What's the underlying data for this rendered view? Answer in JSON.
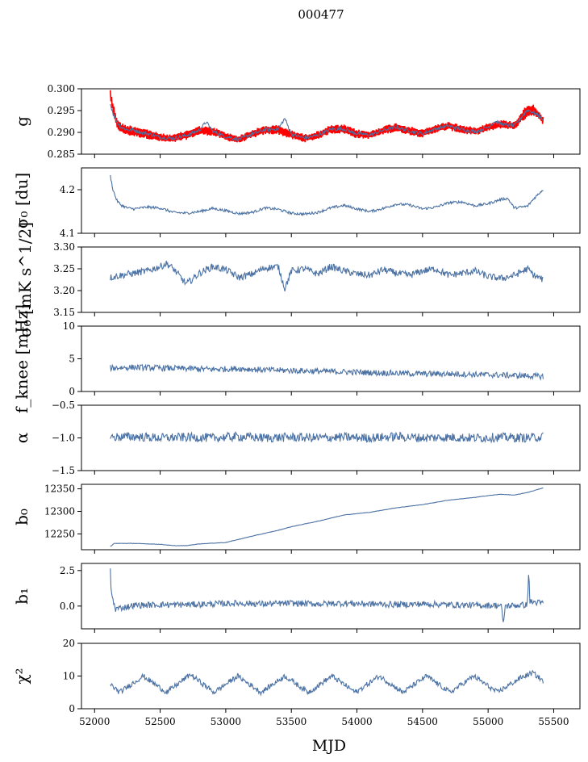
{
  "figure": {
    "title": "000477",
    "xlabel": "MJD"
  },
  "colors": {
    "series": "#4c72a4",
    "model": "#ff0000",
    "axis": "#000000"
  },
  "chart_data": [
    {
      "type": "line",
      "key": "g",
      "ylabel": "g",
      "xlim": [
        51900,
        55700
      ],
      "ylim": [
        0.285,
        0.3
      ],
      "xticks": [
        52000,
        52500,
        53000,
        53500,
        54000,
        54500,
        55000,
        55500
      ],
      "yticks": [
        0.285,
        0.29,
        0.295,
        0.3
      ],
      "ytick_labels": [
        "0.285",
        "0.290",
        "0.295",
        "0.300"
      ],
      "series": [
        {
          "name": "",
          "color": "#ff0000",
          "band": true,
          "x": [
            52120,
            52140,
            52170,
            52200,
            52250,
            52300,
            52400,
            52500,
            52600,
            52700,
            52800,
            52900,
            53000,
            53100,
            53200,
            53300,
            53400,
            53500,
            53600,
            53700,
            53800,
            53900,
            54000,
            54100,
            54200,
            54300,
            54400,
            54500,
            54600,
            54700,
            54800,
            54900,
            55000,
            55100,
            55200,
            55300,
            55350,
            55400,
            55420
          ],
          "upper": [
            0.3,
            0.297,
            0.2935,
            0.2922,
            0.2917,
            0.2916,
            0.2908,
            0.2898,
            0.2895,
            0.2905,
            0.2915,
            0.2913,
            0.29,
            0.2893,
            0.2906,
            0.2916,
            0.2917,
            0.2906,
            0.2896,
            0.2903,
            0.2917,
            0.2918,
            0.2907,
            0.2903,
            0.2915,
            0.2922,
            0.2914,
            0.2907,
            0.2918,
            0.2925,
            0.2917,
            0.2912,
            0.2922,
            0.2929,
            0.2925,
            0.2966,
            0.2965,
            0.2945,
            0.2935
          ],
          "lower": [
            0.298,
            0.2935,
            0.291,
            0.2898,
            0.2893,
            0.289,
            0.2885,
            0.2878,
            0.2876,
            0.2883,
            0.2894,
            0.2892,
            0.2881,
            0.2875,
            0.2886,
            0.2895,
            0.2895,
            0.2884,
            0.2877,
            0.2884,
            0.2897,
            0.2897,
            0.2886,
            0.2885,
            0.2895,
            0.2901,
            0.2894,
            0.2888,
            0.2899,
            0.2905,
            0.2897,
            0.2893,
            0.2902,
            0.2909,
            0.2906,
            0.2935,
            0.2938,
            0.2924,
            0.2918
          ]
        },
        {
          "name": "",
          "color": "#4c72a4",
          "x": [
            52120,
            52140,
            52170,
            52200,
            52250,
            52300,
            52400,
            52500,
            52600,
            52700,
            52800,
            52850,
            52900,
            53000,
            53100,
            53200,
            53300,
            53400,
            53450,
            53500,
            53600,
            53700,
            53800,
            53900,
            54000,
            54100,
            54200,
            54300,
            54400,
            54500,
            54600,
            54700,
            54800,
            54900,
            55000,
            55050,
            55100,
            55200,
            55300,
            55350,
            55400,
            55420
          ],
          "y": [
            0.2965,
            0.2945,
            0.2925,
            0.2912,
            0.2906,
            0.2905,
            0.2897,
            0.2889,
            0.2886,
            0.2893,
            0.2905,
            0.2924,
            0.2903,
            0.289,
            0.2884,
            0.2896,
            0.2906,
            0.2908,
            0.2932,
            0.2896,
            0.2887,
            0.2893,
            0.2907,
            0.2908,
            0.2897,
            0.2894,
            0.2905,
            0.2912,
            0.2904,
            0.2897,
            0.2908,
            0.2915,
            0.2907,
            0.2902,
            0.2912,
            0.2925,
            0.2919,
            0.2915,
            0.2952,
            0.2945,
            0.2935,
            0.2928
          ]
        }
      ]
    },
    {
      "type": "line",
      "key": "sigma0_du",
      "ylabel": "σ₀ [du]",
      "xlim": [
        51900,
        55700
      ],
      "ylim": [
        4.1,
        4.25
      ],
      "yticks": [
        4.1,
        4.2
      ],
      "ytick_labels": [
        "4.1",
        "4.2"
      ],
      "series": [
        {
          "name": "",
          "color": "#4c72a4",
          "x": [
            52120,
            52140,
            52170,
            52200,
            52250,
            52300,
            52400,
            52500,
            52600,
            52700,
            52800,
            52900,
            53000,
            53100,
            53200,
            53300,
            53400,
            53500,
            53600,
            53700,
            53800,
            53900,
            54000,
            54100,
            54200,
            54300,
            54400,
            54500,
            54600,
            54700,
            54800,
            54900,
            55000,
            55100,
            55150,
            55200,
            55300,
            55350,
            55400,
            55420
          ],
          "y": [
            4.232,
            4.2,
            4.175,
            4.165,
            4.158,
            4.156,
            4.16,
            4.158,
            4.148,
            4.146,
            4.15,
            4.157,
            4.152,
            4.145,
            4.148,
            4.158,
            4.155,
            4.146,
            4.144,
            4.148,
            4.158,
            4.164,
            4.156,
            4.15,
            4.157,
            4.167,
            4.165,
            4.156,
            4.16,
            4.17,
            4.172,
            4.163,
            4.168,
            4.178,
            4.18,
            4.158,
            4.162,
            4.18,
            4.195,
            4.2
          ]
        }
      ]
    },
    {
      "type": "line",
      "key": "sigma0_mk",
      "ylabel": "σ₀ [mK s^1/2]",
      "xlim": [
        51900,
        55700
      ],
      "ylim": [
        3.15,
        3.3
      ],
      "yticks": [
        3.15,
        3.2,
        3.25,
        3.3
      ],
      "ytick_labels": [
        "3.15",
        "3.20",
        "3.25",
        "3.30"
      ],
      "series": [
        {
          "name": "",
          "color": "#4c72a4",
          "x": [
            52120,
            52200,
            52300,
            52400,
            52500,
            52550,
            52600,
            52700,
            52800,
            52900,
            53000,
            53100,
            53200,
            53300,
            53400,
            53450,
            53500,
            53600,
            53700,
            53800,
            53900,
            54000,
            54100,
            54200,
            54300,
            54400,
            54500,
            54600,
            54700,
            54800,
            54900,
            55000,
            55100,
            55200,
            55300,
            55350,
            55420
          ],
          "y": [
            3.23,
            3.235,
            3.24,
            3.245,
            3.255,
            3.262,
            3.25,
            3.215,
            3.24,
            3.255,
            3.248,
            3.23,
            3.238,
            3.252,
            3.255,
            3.205,
            3.245,
            3.25,
            3.238,
            3.255,
            3.245,
            3.238,
            3.235,
            3.248,
            3.24,
            3.235,
            3.245,
            3.25,
            3.235,
            3.24,
            3.245,
            3.232,
            3.228,
            3.235,
            3.25,
            3.235,
            3.225
          ]
        }
      ]
    },
    {
      "type": "line",
      "key": "fknee",
      "ylabel": "f_knee [mHz]",
      "xlim": [
        51900,
        55700
      ],
      "ylim": [
        0,
        10
      ],
      "yticks": [
        0,
        5,
        10
      ],
      "ytick_labels": [
        "0",
        "5",
        "10"
      ],
      "series": [
        {
          "name": "",
          "color": "#4c72a4",
          "x": [
            52120,
            52300,
            52500,
            52700,
            52900,
            53100,
            53300,
            53500,
            53700,
            53900,
            54100,
            54300,
            54500,
            54700,
            54900,
            55100,
            55300,
            55420
          ],
          "y": [
            3.6,
            3.7,
            3.6,
            3.5,
            3.4,
            3.5,
            3.3,
            3.2,
            3.1,
            3.0,
            2.9,
            2.8,
            2.7,
            2.7,
            2.6,
            2.5,
            2.4,
            2.3
          ]
        }
      ]
    },
    {
      "type": "line",
      "key": "alpha",
      "ylabel": "α",
      "xlim": [
        51900,
        55700
      ],
      "ylim": [
        -1.5,
        -0.5
      ],
      "yticks": [
        -1.5,
        -1.0,
        -0.5
      ],
      "ytick_labels": [
        "−1.5",
        "−1.0",
        "−0.5"
      ],
      "series": [
        {
          "name": "",
          "color": "#4c72a4",
          "x": [
            52120,
            52300,
            52500,
            52700,
            52900,
            53100,
            53300,
            53500,
            53700,
            53900,
            54100,
            54300,
            54500,
            54700,
            54900,
            55100,
            55300,
            55420
          ],
          "y": [
            -0.99,
            -0.98,
            -1.0,
            -0.99,
            -1.0,
            -0.98,
            -1.0,
            -0.99,
            -1.0,
            -0.99,
            -1.0,
            -0.98,
            -1.0,
            -0.99,
            -1.0,
            -0.99,
            -1.0,
            -0.98
          ]
        }
      ]
    },
    {
      "type": "line",
      "key": "b0",
      "ylabel": "b₀",
      "xlim": [
        51900,
        55700
      ],
      "ylim": [
        12215,
        12360
      ],
      "yticks": [
        12250,
        12300,
        12350
      ],
      "ytick_labels": [
        "12250",
        "12300",
        "12350"
      ],
      "series": [
        {
          "name": "",
          "color": "#4c72a4",
          "x": [
            52120,
            52150,
            52300,
            52500,
            52600,
            52700,
            52800,
            53000,
            53200,
            53400,
            53500,
            53700,
            53900,
            54100,
            54300,
            54500,
            54700,
            54900,
            55000,
            55100,
            55200,
            55300,
            55420
          ],
          "y": [
            12222,
            12229,
            12229,
            12227,
            12224,
            12224,
            12228,
            12231,
            12245,
            12258,
            12266,
            12278,
            12292,
            12298,
            12308,
            12315,
            12325,
            12331,
            12335,
            12338,
            12336,
            12342,
            12352
          ]
        }
      ]
    },
    {
      "type": "line",
      "key": "b1",
      "ylabel": "b₁",
      "xlim": [
        51900,
        55700
      ],
      "ylim": [
        -1.6,
        3.0
      ],
      "yticks": [
        0.0,
        2.5
      ],
      "ytick_labels": [
        "0.0",
        "2.5"
      ],
      "series": [
        {
          "name": "",
          "color": "#4c72a4",
          "x": [
            52120,
            52125,
            52140,
            52160,
            52300,
            52500,
            52700,
            52900,
            53100,
            53300,
            53500,
            53700,
            53900,
            54100,
            54300,
            54500,
            54700,
            54900,
            55100,
            55115,
            55130,
            55300,
            55310,
            55320,
            55420
          ],
          "y": [
            2.7,
            1.2,
            0.4,
            -0.2,
            0.05,
            0.1,
            0.1,
            0.15,
            0.2,
            0.15,
            0.2,
            0.15,
            0.2,
            0.15,
            0.1,
            0.15,
            0.1,
            0.05,
            0.05,
            -1.3,
            0.0,
            0.1,
            2.4,
            0.3,
            0.2
          ]
        }
      ]
    },
    {
      "type": "line",
      "key": "chi2",
      "ylabel": "χ²",
      "xlim": [
        51900,
        55700
      ],
      "ylim": [
        0,
        20
      ],
      "yticks": [
        0,
        10,
        20
      ],
      "ytick_labels": [
        "0",
        "10",
        "20"
      ],
      "series": [
        {
          "name": "",
          "color": "#4c72a4",
          "x": [
            52120,
            52190,
            52370,
            52550,
            52730,
            52910,
            53090,
            53270,
            53450,
            53630,
            53810,
            53990,
            54170,
            54350,
            54530,
            54710,
            54890,
            55070,
            55250,
            55340,
            55420
          ],
          "y": [
            7.5,
            5.0,
            10.0,
            5.0,
            10.5,
            5.0,
            10.0,
            5.0,
            10.0,
            5.0,
            10.0,
            5.0,
            10.0,
            5.0,
            10.0,
            5.0,
            10.0,
            5.0,
            9.5,
            11.0,
            8.5
          ]
        }
      ]
    }
  ]
}
